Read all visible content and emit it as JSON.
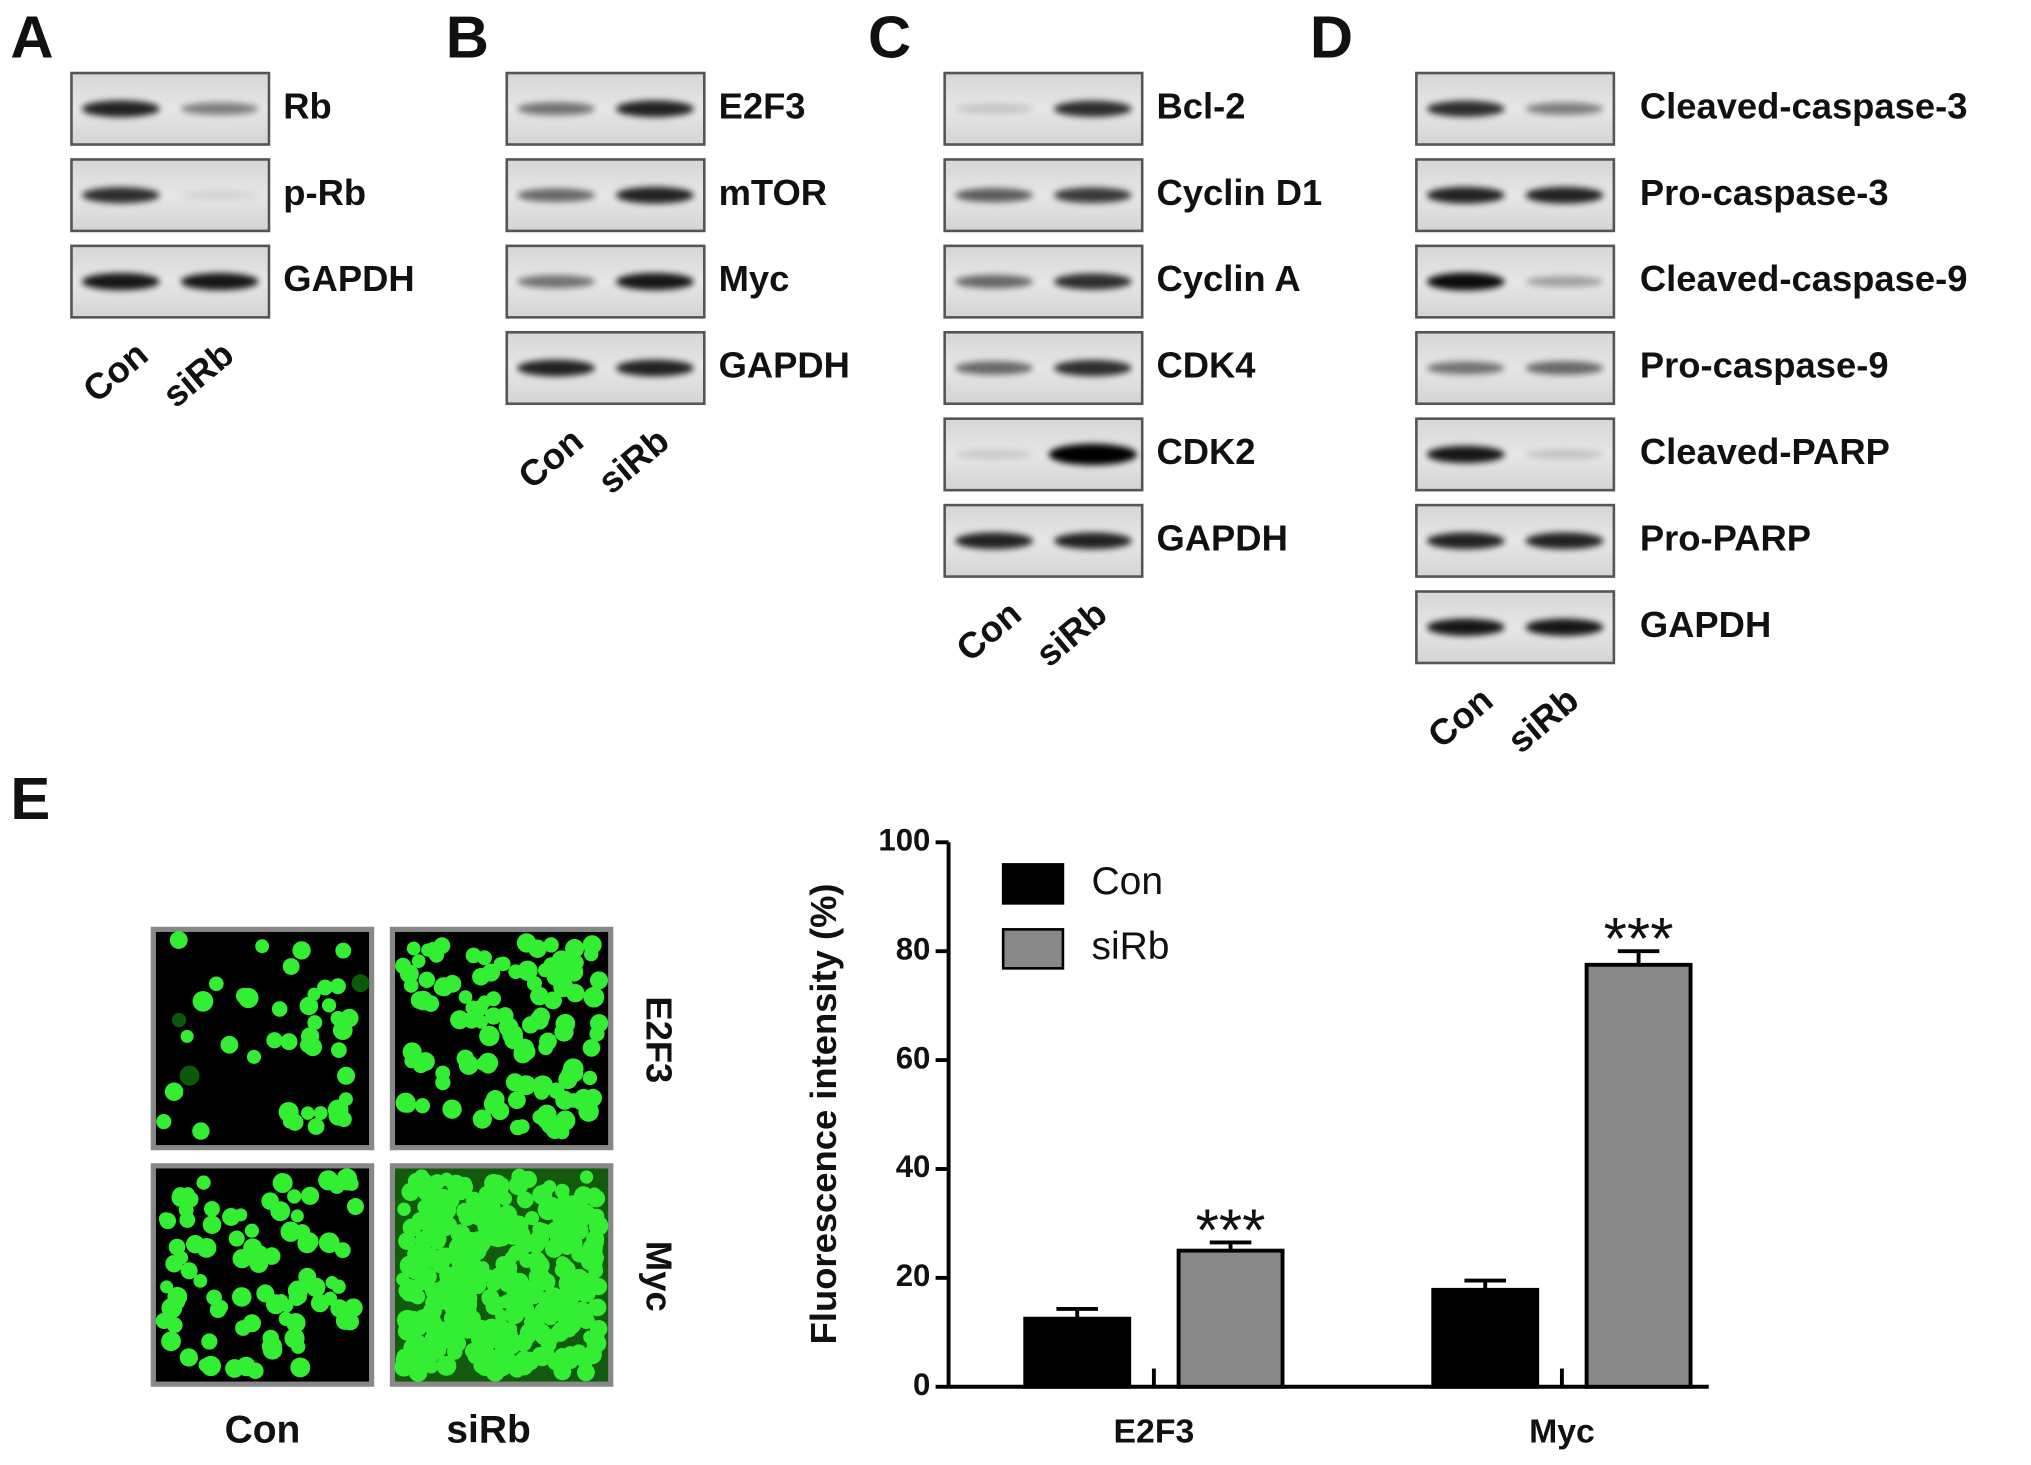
{
  "panels": [
    {
      "label": "A",
      "rows": [
        "Rb",
        "p-Rb",
        "GAPDH"
      ],
      "lanes": [
        "Con",
        "siRb"
      ]
    },
    {
      "label": "B",
      "rows": [
        "E2F3",
        "mTOR",
        "Myc",
        "GAPDH"
      ],
      "lanes": [
        "Con",
        "siRb"
      ]
    },
    {
      "label": "C",
      "rows": [
        "Bcl-2",
        "Cyclin D1",
        "Cyclin A",
        "CDK4",
        "CDK2",
        "GAPDH"
      ],
      "lanes": [
        "Con",
        "siRb"
      ]
    },
    {
      "label": "D",
      "rows": [
        "Cleaved-caspase-3",
        "Pro-caspase-3",
        "Cleaved-caspase-9",
        "Pro-caspase-9",
        "Cleaved-PARP",
        "Pro-PARP",
        "GAPDH"
      ],
      "lanes": [
        "Con",
        "siRb"
      ]
    }
  ],
  "panel_e": {
    "label": "E",
    "images": {
      "rows": [
        "E2F3",
        "Myc"
      ],
      "columns": [
        "Con",
        "siRb"
      ]
    }
  },
  "chart_data": {
    "type": "bar",
    "ylabel": "Fluorescence intensity (%)",
    "categories": [
      "E2F3",
      "Myc"
    ],
    "series": [
      {
        "name": "Con",
        "color": "#000000",
        "values": [
          12.5,
          17.8
        ],
        "errors": [
          1.8,
          1.7
        ]
      },
      {
        "name": "siRb",
        "color": "#888888",
        "values": [
          25,
          77.5
        ],
        "errors": [
          1.5,
          2.5
        ],
        "labels": [
          "***",
          "***"
        ]
      }
    ],
    "ylim": [
      0,
      100
    ],
    "yticks": [
      0,
      20,
      40,
      60,
      80,
      100
    ]
  }
}
